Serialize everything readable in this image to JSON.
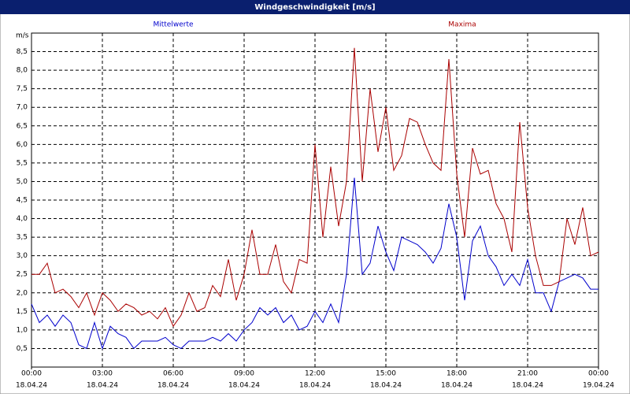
{
  "chart_data": {
    "type": "line",
    "title": "Windgeschwindigkeit [m/s]",
    "ylabel": "m/s",
    "x": [
      0,
      20,
      40,
      60,
      80,
      100,
      120,
      140,
      160,
      180,
      200,
      220,
      240,
      260,
      280,
      300,
      320,
      340,
      360,
      380,
      400,
      420,
      440,
      460,
      480,
      500,
      520,
      540,
      560,
      580,
      600,
      620,
      640,
      660,
      680,
      700,
      720,
      740,
      760,
      780,
      800,
      820,
      840,
      860,
      880,
      900,
      920,
      940,
      960,
      980,
      1000,
      1020,
      1040,
      1060,
      1080,
      1100,
      1120,
      1140,
      1160,
      1180,
      1200,
      1220,
      1240,
      1260,
      1280,
      1300,
      1320,
      1340,
      1360,
      1380,
      1400,
      1420,
      1440
    ],
    "series": [
      {
        "name": "Mittelwerte",
        "color": "#0000cc",
        "values": [
          1.7,
          1.2,
          1.4,
          1.1,
          1.4,
          1.2,
          0.6,
          0.5,
          1.2,
          0.5,
          1.1,
          0.9,
          0.8,
          0.5,
          0.7,
          0.7,
          0.7,
          0.8,
          0.6,
          0.5,
          0.7,
          0.7,
          0.7,
          0.8,
          0.7,
          0.9,
          0.7,
          1.0,
          1.2,
          1.6,
          1.4,
          1.6,
          1.2,
          1.4,
          1.0,
          1.1,
          1.5,
          1.2,
          1.7,
          1.2,
          2.5,
          5.1,
          2.5,
          2.8,
          3.8,
          3.1,
          2.6,
          3.5,
          3.4,
          3.3,
          3.1,
          2.8,
          3.2,
          4.4,
          3.5,
          1.8,
          3.4,
          3.8,
          3.0,
          2.7,
          2.2,
          2.5,
          2.2,
          2.9,
          2.0,
          2.0,
          1.5,
          2.3,
          2.4,
          2.5,
          2.4,
          2.1,
          2.1
        ]
      },
      {
        "name": "Maxima",
        "color": "#aa0000",
        "values": [
          2.5,
          2.5,
          2.8,
          2.0,
          2.1,
          1.9,
          1.6,
          2.0,
          1.4,
          2.0,
          1.8,
          1.5,
          1.7,
          1.6,
          1.4,
          1.5,
          1.3,
          1.6,
          1.1,
          1.4,
          2.0,
          1.5,
          1.6,
          2.2,
          1.9,
          2.9,
          1.8,
          2.5,
          3.7,
          2.5,
          2.5,
          3.3,
          2.3,
          2.0,
          2.9,
          2.8,
          6.0,
          3.5,
          5.4,
          3.8,
          5.0,
          8.6,
          5.0,
          7.5,
          5.8,
          7.0,
          5.3,
          5.7,
          6.7,
          6.6,
          6.0,
          5.5,
          5.3,
          8.3,
          5.2,
          3.5,
          5.9,
          5.2,
          5.3,
          4.4,
          4.0,
          3.1,
          6.6,
          4.3,
          3.0,
          2.2,
          2.2,
          2.3,
          4.0,
          3.3,
          4.3,
          3.0,
          3.1
        ]
      }
    ],
    "xlim": [
      0,
      1440
    ],
    "xticks": [
      {
        "value": 0,
        "label": "00:00"
      },
      {
        "value": 180,
        "label": "03:00"
      },
      {
        "value": 360,
        "label": "06:00"
      },
      {
        "value": 540,
        "label": "09:00"
      },
      {
        "value": 720,
        "label": "12:00"
      },
      {
        "value": 900,
        "label": "15:00"
      },
      {
        "value": 1080,
        "label": "18:00"
      },
      {
        "value": 1260,
        "label": "21:00"
      },
      {
        "value": 1440,
        "label": "00:00"
      }
    ],
    "xtick_dates": [
      "18.04.24",
      "18.04.24",
      "18.04.24",
      "18.04.24",
      "18.04.24",
      "18.04.24",
      "18.04.24",
      "18.04.24",
      "19.04.24"
    ],
    "ylim": [
      0,
      9
    ],
    "yticks": [
      {
        "value": 0.5,
        "label": "0,5"
      },
      {
        "value": 1,
        "label": "1,0"
      },
      {
        "value": 1.5,
        "label": "1,5"
      },
      {
        "value": 2,
        "label": "2,0"
      },
      {
        "value": 2.5,
        "label": "2,5"
      },
      {
        "value": 3,
        "label": "3,0"
      },
      {
        "value": 3.5,
        "label": "3,5"
      },
      {
        "value": 4,
        "label": "4,0"
      },
      {
        "value": 4.5,
        "label": "4,5"
      },
      {
        "value": 5,
        "label": "5,0"
      },
      {
        "value": 5.5,
        "label": "5,5"
      },
      {
        "value": 6,
        "label": "6,0"
      },
      {
        "value": 6.5,
        "label": "6,5"
      },
      {
        "value": 7,
        "label": "7,0"
      },
      {
        "value": 7.5,
        "label": "7,5"
      },
      {
        "value": 8,
        "label": "8,0"
      },
      {
        "value": 8.5,
        "label": "8,5"
      }
    ],
    "grid": true
  }
}
